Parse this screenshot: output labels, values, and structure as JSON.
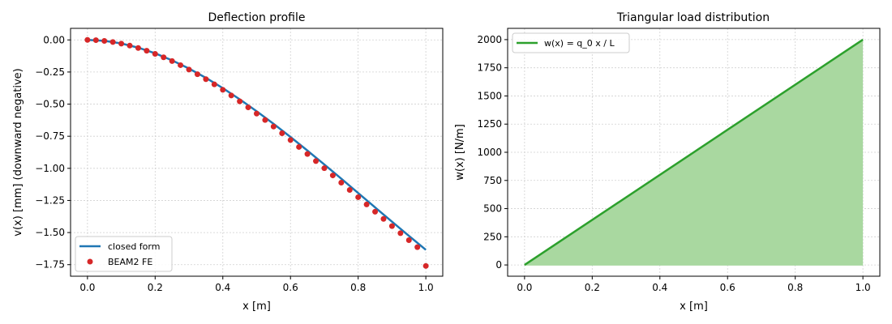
{
  "chart_data": [
    {
      "type": "line",
      "title": "Deflection profile",
      "xlabel": "x [m]",
      "ylabel": "v(x)  [mm]   (downward negative)",
      "xlim": [
        -0.05,
        1.05
      ],
      "ylim": [
        -1.84,
        0.09
      ],
      "xticks": [
        0.0,
        0.2,
        0.4,
        0.6,
        0.8,
        1.0
      ],
      "xtick_labels": [
        "0.0",
        "0.2",
        "0.4",
        "0.6",
        "0.8",
        "1.0"
      ],
      "yticks": [
        0.0,
        -0.25,
        -0.5,
        -0.75,
        -1.0,
        -1.25,
        -1.5,
        -1.75
      ],
      "ytick_labels": [
        "0.00",
        "−0.25",
        "−0.50",
        "−0.75",
        "−1.00",
        "−1.25",
        "−1.50",
        "−1.75"
      ],
      "grid": true,
      "legend_position": "lower-left",
      "series": [
        {
          "name": "closed form",
          "kind": "line",
          "color": "#1f77b4",
          "x": [
            0.0,
            0.05,
            0.1,
            0.15,
            0.2,
            0.25,
            0.3,
            0.35,
            0.4,
            0.45,
            0.5,
            0.55,
            0.6,
            0.65,
            0.7,
            0.75,
            0.8,
            0.85,
            0.9,
            0.95,
            1.0
          ],
          "y": [
            0.0,
            -0.0071,
            -0.0276,
            -0.0604,
            -0.1045,
            -0.159,
            -0.2229,
            -0.2955,
            -0.3756,
            -0.4626,
            -0.5555,
            -0.6535,
            -0.7558,
            -0.8616,
            -0.9701,
            -1.0805,
            -1.1921,
            -1.304,
            -1.4156,
            -1.5261,
            -1.6347
          ]
        },
        {
          "name": "BEAM2 FE",
          "kind": "scatter",
          "color": "#d62728",
          "x": [
            0.0,
            0.025,
            0.05,
            0.075,
            0.1,
            0.125,
            0.15,
            0.175,
            0.2,
            0.225,
            0.25,
            0.275,
            0.3,
            0.325,
            0.35,
            0.375,
            0.4,
            0.425,
            0.45,
            0.475,
            0.5,
            0.525,
            0.55,
            0.575,
            0.6,
            0.625,
            0.65,
            0.675,
            0.7,
            0.725,
            0.75,
            0.775,
            0.8,
            0.825,
            0.85,
            0.875,
            0.9,
            0.925,
            0.95,
            0.975,
            1.0
          ],
          "y": [
            0.0,
            -0.0019,
            -0.0076,
            -0.0166,
            -0.0289,
            -0.0444,
            -0.0629,
            -0.0843,
            -0.1085,
            -0.1354,
            -0.1648,
            -0.1967,
            -0.2309,
            -0.2673,
            -0.3058,
            -0.3463,
            -0.3886,
            -0.4326,
            -0.4782,
            -0.5254,
            -0.574,
            -0.6238,
            -0.6748,
            -0.7269,
            -0.7799,
            -0.8337,
            -0.8883,
            -0.9435,
            -0.9991,
            -1.0552,
            -1.1116,
            -1.1681,
            -1.2247,
            -1.2813,
            -1.3377,
            -1.3938,
            -1.4496,
            -1.5049,
            -1.5595,
            -1.6135,
            -1.76
          ]
        }
      ]
    },
    {
      "type": "area",
      "title": "Triangular load distribution",
      "xlabel": "x [m]",
      "ylabel": "w(x)  [N/m]",
      "xlim": [
        -0.05,
        1.05
      ],
      "ylim": [
        -100,
        2100
      ],
      "xticks": [
        0.0,
        0.2,
        0.4,
        0.6,
        0.8,
        1.0
      ],
      "xtick_labels": [
        "0.0",
        "0.2",
        "0.4",
        "0.6",
        "0.8",
        "1.0"
      ],
      "yticks": [
        0,
        250,
        500,
        750,
        1000,
        1250,
        1500,
        1750,
        2000
      ],
      "ytick_labels": [
        "0",
        "250",
        "500",
        "750",
        "1000",
        "1250",
        "1500",
        "1750",
        "2000"
      ],
      "grid": true,
      "legend_position": "upper-left",
      "series": [
        {
          "name": "w(x) = q_0 x / L",
          "kind": "line",
          "color": "#2ca02c",
          "fill": "#a9d8a0",
          "x": [
            0.0,
            1.0
          ],
          "y": [
            0,
            2000
          ]
        }
      ]
    }
  ]
}
